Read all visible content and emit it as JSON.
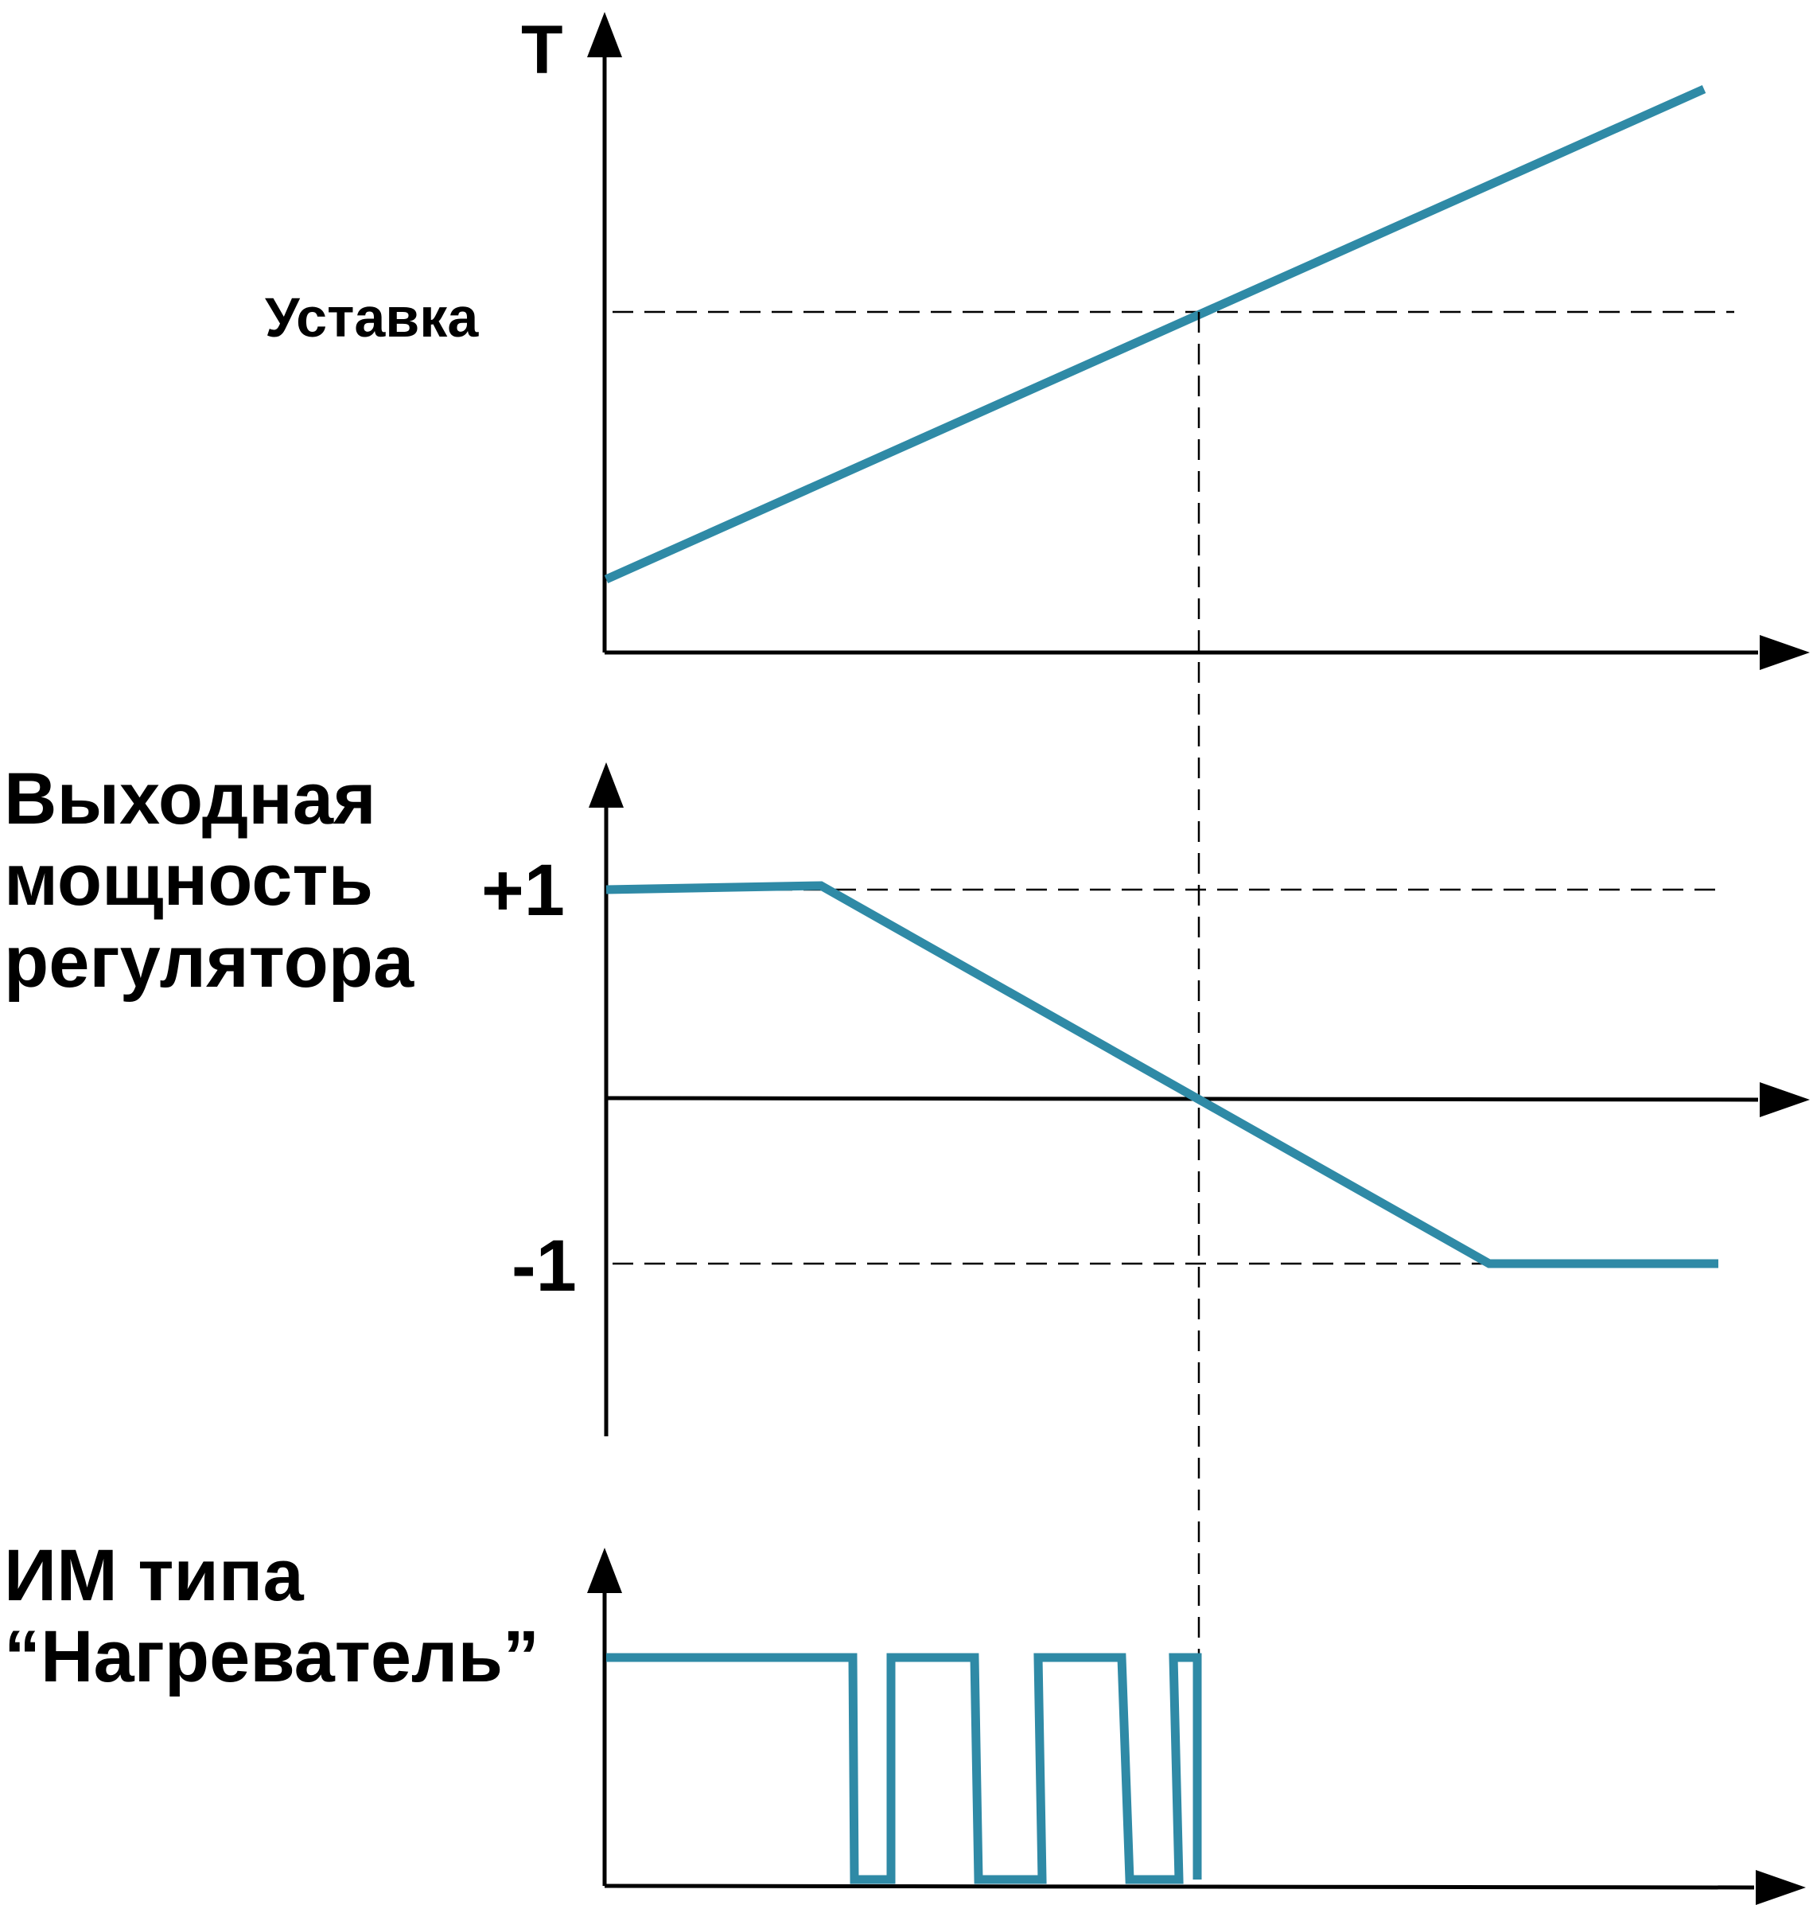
{
  "colors": {
    "signal": "#2f8aa6",
    "axis": "#000000"
  },
  "top_panel": {
    "y_axis_label": "Т",
    "setpoint_label": "Уставка"
  },
  "middle_panel": {
    "title_lines": [
      "Выходная",
      "мощность",
      "регулятора"
    ],
    "plus_one": "+1",
    "minus_one": "-1"
  },
  "bottom_panel": {
    "title_lines": [
      "ИМ типа",
      "“Нагреватель”"
    ]
  }
}
